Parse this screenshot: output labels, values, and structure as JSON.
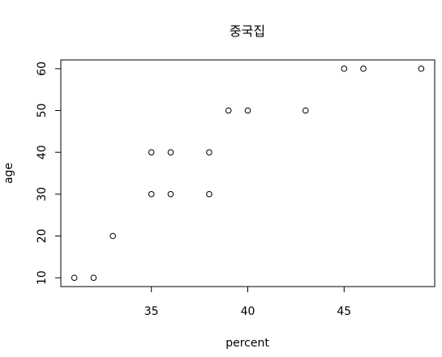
{
  "chart_data": {
    "type": "scatter",
    "title": "중국집",
    "xlabel": "percent",
    "ylabel": "age",
    "xlim": [
      30.3,
      49.7
    ],
    "ylim": [
      7.9,
      62.1
    ],
    "x_ticks": [
      35,
      40,
      45
    ],
    "y_ticks": [
      10,
      20,
      30,
      40,
      50,
      60
    ],
    "grid": false,
    "points": [
      {
        "x": 31,
        "y": 10
      },
      {
        "x": 32,
        "y": 10
      },
      {
        "x": 33,
        "y": 20
      },
      {
        "x": 35,
        "y": 30
      },
      {
        "x": 35,
        "y": 40
      },
      {
        "x": 36,
        "y": 30
      },
      {
        "x": 36,
        "y": 40
      },
      {
        "x": 38,
        "y": 30
      },
      {
        "x": 38,
        "y": 40
      },
      {
        "x": 39,
        "y": 50
      },
      {
        "x": 40,
        "y": 50
      },
      {
        "x": 43,
        "y": 50
      },
      {
        "x": 45,
        "y": 60
      },
      {
        "x": 46,
        "y": 60
      },
      {
        "x": 49,
        "y": 60
      }
    ]
  }
}
